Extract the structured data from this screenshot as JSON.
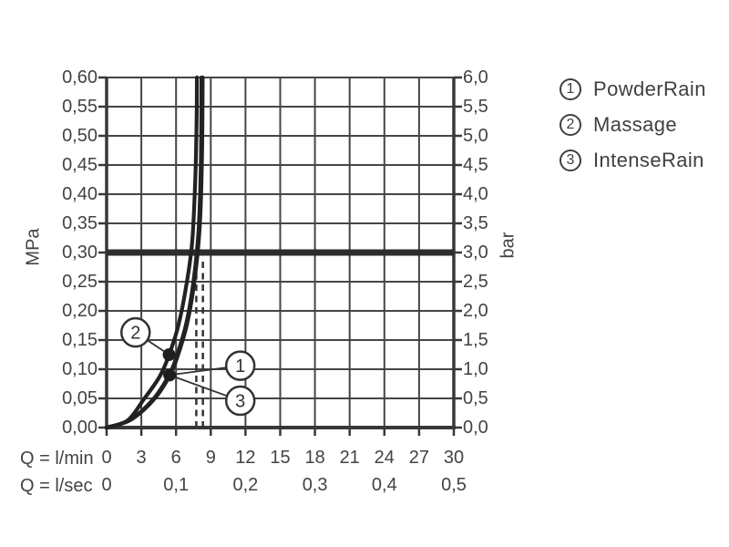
{
  "colors": {
    "background": "#ffffff",
    "ink": "#434343",
    "grid": "#454545",
    "frame": "#383838",
    "curve": "#222222",
    "reference_line": "#2d2d2d"
  },
  "legend": {
    "items": [
      {
        "num": "1",
        "label": "PowderRain"
      },
      {
        "num": "2",
        "label": "Massage"
      },
      {
        "num": "3",
        "label": "IntenseRain"
      }
    ]
  },
  "chart_data": {
    "type": "line",
    "title": "",
    "grid": true,
    "x_axis": {
      "label_lmin": "Q = l/min",
      "label_lsec": "Q = l/sec",
      "range_lmin": [
        0,
        30
      ],
      "step_lmin": 3,
      "lmin_ticks": [
        {
          "q": 0,
          "label": "0"
        },
        {
          "q": 3,
          "label": "3"
        },
        {
          "q": 6,
          "label": "6"
        },
        {
          "q": 9,
          "label": "9"
        },
        {
          "q": 12,
          "label": "12"
        },
        {
          "q": 15,
          "label": "15"
        },
        {
          "q": 18,
          "label": "18"
        },
        {
          "q": 21,
          "label": "21"
        },
        {
          "q": 24,
          "label": "24"
        },
        {
          "q": 27,
          "label": "27"
        },
        {
          "q": 30,
          "label": "30"
        }
      ],
      "lsec_ticks": [
        {
          "q": 0,
          "label": "0"
        },
        {
          "q": 6,
          "label": "0,1"
        },
        {
          "q": 12,
          "label": "0,2"
        },
        {
          "q": 18,
          "label": "0,3"
        },
        {
          "q": 24,
          "label": "0,4"
        },
        {
          "q": 30,
          "label": "0,5"
        }
      ]
    },
    "y_left": {
      "unit": "MPa",
      "range": [
        0,
        0.6
      ],
      "step": 0.05,
      "ticks": [
        {
          "p": 0.6,
          "label": "0,60"
        },
        {
          "p": 0.55,
          "label": "0,55"
        },
        {
          "p": 0.5,
          "label": "0,50"
        },
        {
          "p": 0.45,
          "label": "0,45"
        },
        {
          "p": 0.4,
          "label": "0,40"
        },
        {
          "p": 0.35,
          "label": "0,35"
        },
        {
          "p": 0.3,
          "label": "0,30"
        },
        {
          "p": 0.25,
          "label": "0,25"
        },
        {
          "p": 0.2,
          "label": "0,20"
        },
        {
          "p": 0.15,
          "label": "0,15"
        },
        {
          "p": 0.1,
          "label": "0,10"
        },
        {
          "p": 0.05,
          "label": "0,05"
        },
        {
          "p": 0.0,
          "label": "0,00"
        }
      ]
    },
    "y_right": {
      "unit": "bar",
      "range": [
        0,
        6
      ],
      "step": 0.5,
      "ticks": [
        {
          "b": 6.0,
          "label": "6,0"
        },
        {
          "b": 5.5,
          "label": "5,5"
        },
        {
          "b": 5.0,
          "label": "5,0"
        },
        {
          "b": 4.5,
          "label": "4,5"
        },
        {
          "b": 4.0,
          "label": "4,0"
        },
        {
          "b": 3.5,
          "label": "3,5"
        },
        {
          "b": 3.0,
          "label": "3,0"
        },
        {
          "b": 2.5,
          "label": "2,5"
        },
        {
          "b": 2.0,
          "label": "2,0"
        },
        {
          "b": 1.5,
          "label": "1,5"
        },
        {
          "b": 1.0,
          "label": "1,0"
        },
        {
          "b": 0.5,
          "label": "0,5"
        },
        {
          "b": 0.0,
          "label": "0,0"
        }
      ]
    },
    "reference_line": {
      "mpa": 0.3,
      "bar": 3.0
    },
    "dashed_lines": [
      {
        "q": 7.75,
        "p_max": 0.285
      },
      {
        "q": 8.32,
        "p_max": 0.285
      }
    ],
    "series": [
      {
        "id": "2",
        "name": "Massage",
        "points": [
          [
            0,
            0
          ],
          [
            1.8,
            0.012
          ],
          [
            3.2,
            0.048
          ],
          [
            4.6,
            0.088
          ],
          [
            5.4,
            0.125
          ],
          [
            6.2,
            0.175
          ],
          [
            6.9,
            0.245
          ],
          [
            7.4,
            0.32
          ],
          [
            7.67,
            0.43
          ],
          [
            7.78,
            0.53
          ],
          [
            7.8,
            0.6
          ]
        ]
      },
      {
        "id": "1",
        "name": "PowderRain",
        "points": [
          [
            0,
            0
          ],
          [
            2.0,
            0.013
          ],
          [
            4.0,
            0.048
          ],
          [
            5.4,
            0.09
          ],
          [
            6.1,
            0.125
          ],
          [
            6.9,
            0.18
          ],
          [
            7.5,
            0.25
          ],
          [
            7.95,
            0.34
          ],
          [
            8.15,
            0.46
          ],
          [
            8.2,
            0.6
          ]
        ]
      },
      {
        "id": "3",
        "name": "IntenseRain",
        "points": [
          [
            0,
            0
          ],
          [
            2.06,
            0.013
          ],
          [
            4.08,
            0.048
          ],
          [
            5.48,
            0.09
          ],
          [
            6.18,
            0.125
          ],
          [
            6.98,
            0.18
          ],
          [
            7.58,
            0.25
          ],
          [
            8.03,
            0.34
          ],
          [
            8.24,
            0.46
          ],
          [
            8.3,
            0.6
          ]
        ]
      }
    ],
    "markers": [
      {
        "q": 5.4,
        "p": 0.125,
        "series": "2"
      },
      {
        "q": 5.44,
        "p": 0.09,
        "series": "1,3"
      }
    ],
    "callouts": [
      {
        "num": "2",
        "q": 2.5,
        "p": 0.163,
        "target": {
          "q": 5.4,
          "p": 0.125
        }
      },
      {
        "num": "1",
        "q": 11.55,
        "p": 0.106,
        "target": {
          "q": 5.44,
          "p": 0.09
        }
      },
      {
        "num": "3",
        "q": 11.55,
        "p": 0.046,
        "target": {
          "q": 5.44,
          "p": 0.09
        }
      }
    ]
  }
}
